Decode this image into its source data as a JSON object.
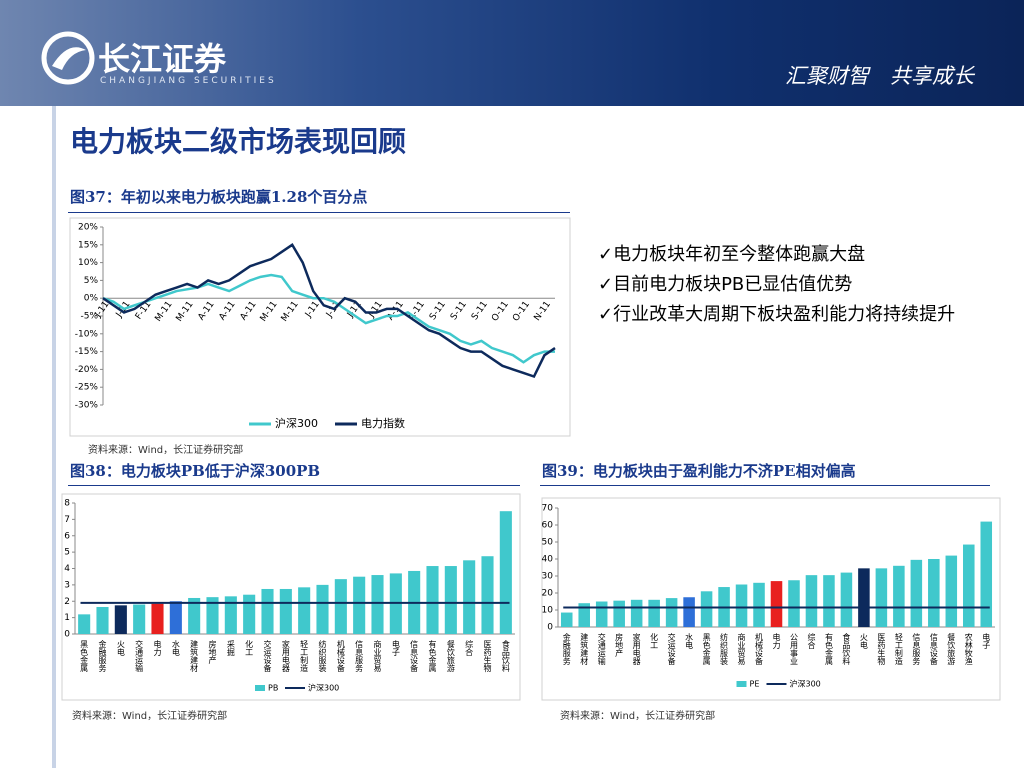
{
  "header": {
    "logo_cn": "长江证券",
    "logo_en": "CHANGJIANG SECURITIES",
    "slogan": "汇聚财智　共享成长"
  },
  "title": "电力板块二级市场表现回顾",
  "bullets": [
    "✓电力板块年初至今整体跑赢大盘",
    "✓目前电力板块PB已显估值优势",
    "✓行业改革大周期下板块盈利能力将持续提升"
  ],
  "chart_data": [
    {
      "type": "line",
      "title": "图37：年初以来电力板块跑赢1.28个百分点",
      "source": "资料来源：Wind，长江证券研究部",
      "categories": [
        "J-11",
        null,
        "J-11",
        null,
        "F-11",
        null,
        "M-11",
        null,
        "M-11",
        null,
        "A-11",
        null,
        "A-11",
        null,
        "A-11",
        null,
        "M-11",
        null,
        "M-11",
        null,
        "J-11",
        null,
        "J-11",
        null,
        "J-11",
        null,
        "J-11",
        null,
        "A-11",
        null,
        "A-11",
        null,
        "S-11",
        null,
        "S-11",
        null,
        "S-11",
        null,
        "O-11",
        null,
        "O-11",
        null,
        "N-11",
        null
      ],
      "series": [
        {
          "name": "沪深300",
          "color": "#40c8cc",
          "values": [
            0,
            -1,
            -3,
            -2,
            -1,
            0,
            1,
            2,
            2.5,
            3,
            4,
            3,
            2,
            3.5,
            5,
            6,
            6.5,
            6,
            2,
            1,
            0,
            0,
            -1,
            -3,
            -5,
            -7,
            -6,
            -5,
            -5,
            -4,
            -6,
            -8,
            -9,
            -10,
            -12,
            -13,
            -12,
            -14,
            -15,
            -16,
            -18,
            -16,
            -15,
            -15
          ]
        },
        {
          "name": "电力指数",
          "color": "#0d2a5c",
          "values": [
            0,
            -2,
            -4,
            -3,
            -1,
            1,
            2,
            3,
            4,
            3,
            5,
            4,
            5,
            7,
            9,
            10,
            11,
            13,
            15,
            10,
            2,
            -2,
            -3,
            0,
            -1,
            -4,
            -4,
            -3,
            -3,
            -5,
            -7,
            -9,
            -10,
            -12,
            -14,
            -15,
            -15,
            -17,
            -19,
            -20,
            -21,
            -22,
            -16,
            -14
          ]
        }
      ],
      "ylim": [
        -30,
        20
      ],
      "yticks": [
        {
          "value": 20,
          "label": "20%"
        },
        {
          "value": 15,
          "label": "15%"
        },
        {
          "value": 10,
          "label": "10%"
        },
        {
          "value": 5,
          "label": "5%"
        },
        {
          "value": 0,
          "label": "0%"
        },
        {
          "value": -5,
          "label": "-5%"
        },
        {
          "value": -10,
          "label": "-10%"
        },
        {
          "value": -15,
          "label": "-15%"
        },
        {
          "value": -20,
          "label": "-20%"
        },
        {
          "value": -25,
          "label": "-25%"
        },
        {
          "value": -30,
          "label": "-30%"
        }
      ]
    },
    {
      "type": "bar",
      "title": "图38：电力板块PB低于沪深300PB",
      "source": "资料来源：Wind，长江证券研究部",
      "categories": [
        "黑色金属",
        "金融服务",
        "火电",
        "交通运输",
        "电力",
        "水电",
        "建筑建材",
        "房地产",
        "采掘",
        "化工",
        "交运设备",
        "家用电器",
        "轻工制造",
        "纺织服装",
        "机械设备",
        "信息服务",
        "商业贸易",
        "电子",
        "信息设备",
        "有色金属",
        "餐饮旅游",
        "综合",
        "医药生物",
        "食品饮料"
      ],
      "series": [
        {
          "name": "PB",
          "color": "#40c8cc",
          "values": [
            1.2,
            1.65,
            1.75,
            1.8,
            1.85,
            2.0,
            2.2,
            2.25,
            2.3,
            2.4,
            2.75,
            2.75,
            2.85,
            3.0,
            3.35,
            3.5,
            3.6,
            3.7,
            3.85,
            4.15,
            4.15,
            4.5,
            4.75,
            7.5
          ],
          "colors": [
            "#40c8cc",
            "#40c8cc",
            "#0d2a5c",
            "#40c8cc",
            "#e8201f",
            "#2e6fd8",
            "#40c8cc",
            "#40c8cc",
            "#40c8cc",
            "#40c8cc",
            "#40c8cc",
            "#40c8cc",
            "#40c8cc",
            "#40c8cc",
            "#40c8cc",
            "#40c8cc",
            "#40c8cc",
            "#40c8cc",
            "#40c8cc",
            "#40c8cc",
            "#40c8cc",
            "#40c8cc",
            "#40c8cc",
            "#40c8cc"
          ]
        }
      ],
      "hline": {
        "name": "沪深300",
        "color": "#0d2a5c",
        "value": 1.9
      },
      "ylim": [
        0,
        8
      ],
      "yticks": [
        0,
        1,
        2,
        3,
        4,
        5,
        6,
        7,
        8
      ]
    },
    {
      "type": "bar",
      "title": "图39：电力板块由于盈利能力不济PE相对偏高",
      "source": "资料来源：Wind，长江证券研究部",
      "categories": [
        "金融服务",
        "建筑建材",
        "交通运输",
        "房地产",
        "家用电器",
        "化工",
        "交运设备",
        "水电",
        "黑色金属",
        "纺织服装",
        "商业贸易",
        "机械设备",
        "电力",
        "公用事业",
        "综合",
        "有色金属",
        "食品饮料",
        "火电",
        "医药生物",
        "轻工制造",
        "信息服务",
        "信息设备",
        "餐饮旅游",
        "农林牧渔",
        "电子"
      ],
      "series": [
        {
          "name": "PE",
          "color": "#40c8cc",
          "values": [
            8.5,
            14,
            15,
            15.5,
            16,
            16,
            17,
            17.5,
            21,
            23.5,
            25,
            26,
            27,
            27.5,
            30.5,
            30.5,
            32,
            34.5,
            34.5,
            36,
            39.5,
            40,
            42,
            48.5,
            62
          ],
          "colors": [
            "#40c8cc",
            "#40c8cc",
            "#40c8cc",
            "#40c8cc",
            "#40c8cc",
            "#40c8cc",
            "#40c8cc",
            "#2e6fd8",
            "#40c8cc",
            "#40c8cc",
            "#40c8cc",
            "#40c8cc",
            "#e8201f",
            "#40c8cc",
            "#40c8cc",
            "#40c8cc",
            "#40c8cc",
            "#0d2a5c",
            "#40c8cc",
            "#40c8cc",
            "#40c8cc",
            "#40c8cc",
            "#40c8cc",
            "#40c8cc",
            "#40c8cc"
          ]
        }
      ],
      "hline": {
        "name": "沪深300",
        "color": "#0d2a5c",
        "value": 11.5
      },
      "ylim": [
        0,
        70
      ],
      "yticks": [
        0,
        10,
        20,
        30,
        40,
        50,
        60,
        70
      ]
    }
  ]
}
